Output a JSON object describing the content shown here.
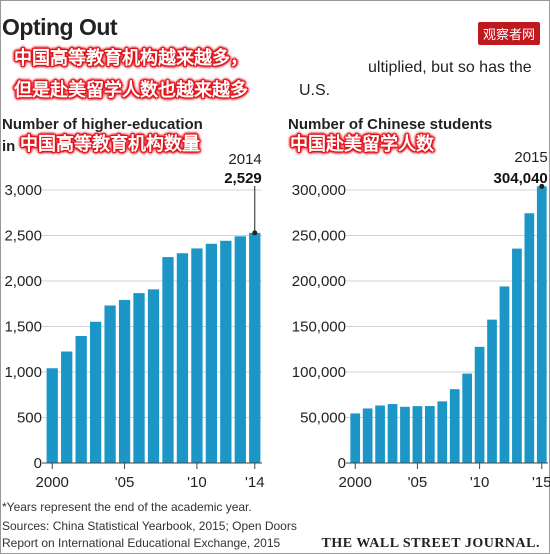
{
  "header": {
    "title": "Opting Out",
    "watermark": "观察者网",
    "subtitle_line1": "ultiplied, but so has the",
    "subtitle_line2": "U.S.",
    "caption_cn_1": "中国高等教育机构越来越多，",
    "caption_cn_2": "但是赴美留学人数也越来越多"
  },
  "charts_meta": {
    "left_title": "Number of higher-education",
    "left_title_frag": "in",
    "left_caption_cn": "中国高等教育机构数量",
    "right_title": "Number of Chinese students",
    "right_caption_cn": "中国赴美留学人数"
  },
  "footer": {
    "note": "*Years represent the end of the academic year.",
    "sources_1": "Sources: China Statistical Yearbook, 2015; Open Doors",
    "sources_2": "Report on International Educational Exchange, 2015",
    "publisher": "THE WALL STREET JOURNAL."
  },
  "colors": {
    "bar": "#1b96c6",
    "grid": "#cfd3d6",
    "highlight": "#e0141c"
  },
  "chart_data": [
    {
      "type": "bar",
      "x": [
        2000,
        2001,
        2002,
        2003,
        2004,
        2005,
        2006,
        2007,
        2008,
        2009,
        2010,
        2011,
        2012,
        2013,
        2014
      ],
      "values": [
        1041,
        1225,
        1396,
        1552,
        1731,
        1792,
        1867,
        1908,
        2263,
        2305,
        2358,
        2409,
        2442,
        2491,
        2529
      ],
      "xtick_labels": [
        "2000",
        "'05",
        "'10",
        "'14"
      ],
      "xtick_values": [
        2000,
        2005,
        2010,
        2014
      ],
      "ytick_labels": [
        "0",
        "500",
        "1,000",
        "1,500",
        "2,000",
        "2,500",
        "3,000"
      ],
      "ytick_values": [
        0,
        500,
        1000,
        1500,
        2000,
        2500,
        3000
      ],
      "ylim": [
        0,
        3000
      ],
      "grid": true,
      "annotation": {
        "year_label": "2014",
        "value_label": "2,529"
      }
    },
    {
      "type": "bar",
      "x": [
        2000,
        2001,
        2002,
        2003,
        2004,
        2005,
        2006,
        2007,
        2008,
        2009,
        2010,
        2011,
        2012,
        2013,
        2014,
        2015
      ],
      "values": [
        54466,
        59939,
        63211,
        64757,
        61765,
        62523,
        62582,
        67723,
        81127,
        98235,
        127628,
        157558,
        194029,
        235597,
        274439,
        304040
      ],
      "xtick_labels": [
        "2000",
        "'05",
        "'10",
        "'15"
      ],
      "xtick_values": [
        2000,
        2005,
        2010,
        2015
      ],
      "ytick_labels": [
        "0",
        "50,000",
        "100,000",
        "150,000",
        "200,000",
        "250,000",
        "300,000"
      ],
      "ytick_values": [
        0,
        50000,
        100000,
        150000,
        200000,
        250000,
        300000
      ],
      "ylim": [
        0,
        300000
      ],
      "grid": true,
      "annotation": {
        "year_label": "2015",
        "value_label": "304,040"
      }
    }
  ]
}
